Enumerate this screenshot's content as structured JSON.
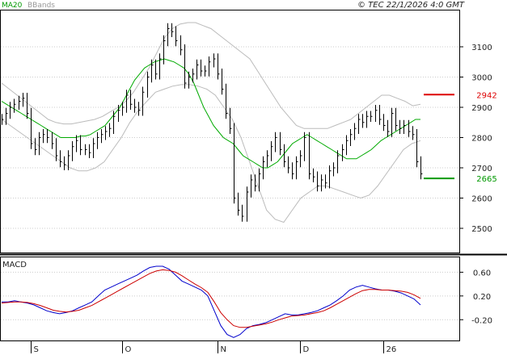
{
  "chart_data": [
    {
      "type": "line",
      "panel": "price",
      "header": {
        "legend_ma": "MA20",
        "legend_bb": "BBands",
        "copyright": "© TEC 22/1/2026 4:0 GMT"
      },
      "y_ticks": [
        2500,
        2600,
        2700,
        2800,
        2900,
        3000,
        3100
      ],
      "ylim": [
        2420,
        3220
      ],
      "x_labels": [
        {
          "label": "S",
          "index": 7
        },
        {
          "label": "O",
          "index": 29
        },
        {
          "label": "N",
          "index": 52
        },
        {
          "label": "D",
          "index": 72
        },
        {
          "label": "26",
          "index": 92
        }
      ],
      "levels": [
        {
          "label": "2942",
          "value": 2942,
          "color": "#dd0000"
        },
        {
          "label": "2665",
          "value": 2665,
          "color": "#009900"
        }
      ],
      "close": [
        2860,
        2880,
        2900,
        2910,
        2920,
        2930,
        2880,
        2780,
        2760,
        2800,
        2810,
        2800,
        2780,
        2740,
        2720,
        2710,
        2740,
        2770,
        2790,
        2760,
        2760,
        2750,
        2780,
        2800,
        2810,
        2820,
        2830,
        2870,
        2890,
        2900,
        2940,
        2910,
        2900,
        2890,
        2950,
        3000,
        3040,
        3010,
        3060,
        3120,
        3160,
        3150,
        3120,
        3090,
        2980,
        3000,
        3010,
        3040,
        3020,
        3020,
        3050,
        3060,
        3010,
        2960,
        2880,
        2830,
        2600,
        2560,
        2540,
        2620,
        2660,
        2640,
        2680,
        2720,
        2740,
        2770,
        2800,
        2760,
        2720,
        2700,
        2680,
        2720,
        2740,
        2800,
        2680,
        2670,
        2640,
        2660,
        2650,
        2690,
        2700,
        2740,
        2760,
        2790,
        2810,
        2830,
        2860,
        2850,
        2870,
        2870,
        2890,
        2860,
        2840,
        2820,
        2880,
        2840,
        2830,
        2840,
        2820,
        2810,
        2720,
        2680
      ],
      "ma20": [
        2920,
        2910,
        2900,
        2890,
        2880,
        2870,
        2860,
        2850,
        2840,
        2830,
        2820,
        2810,
        2800,
        2800,
        2800,
        2800,
        2805,
        2805,
        2810,
        2820,
        2830,
        2840,
        2860,
        2880,
        2900,
        2930,
        2960,
        2990,
        3010,
        3030,
        3040,
        3050,
        3055,
        3060,
        3055,
        3050,
        3040,
        3030,
        3010,
        2980,
        2940,
        2900,
        2870,
        2840,
        2820,
        2800,
        2790,
        2780,
        2760,
        2740,
        2730,
        2720,
        2710,
        2700,
        2700,
        2710,
        2720,
        2740,
        2760,
        2780,
        2790,
        2800,
        2810,
        2800,
        2790,
        2780,
        2770,
        2760,
        2750,
        2740,
        2730,
        2730,
        2730,
        2740,
        2750,
        2760,
        2775,
        2790,
        2800,
        2810,
        2820,
        2830,
        2840,
        2850,
        2860,
        2860
      ],
      "ma20_start_index": 0,
      "bb_upper": [
        2980,
        2960,
        2940,
        2920,
        2900,
        2880,
        2860,
        2850,
        2845,
        2845,
        2850,
        2855,
        2860,
        2870,
        2885,
        2900,
        2920,
        2950,
        2990,
        3030,
        3080,
        3130,
        3160,
        3175,
        3180,
        3180,
        3170,
        3160,
        3140,
        3120,
        3100,
        3080,
        3060,
        3020,
        2980,
        2940,
        2900,
        2870,
        2840,
        2830,
        2830,
        2830,
        2830,
        2840,
        2850,
        2860,
        2880,
        2900,
        2920,
        2940,
        2940,
        2930,
        2920,
        2905,
        2910
      ],
      "bb_upper_start_index": 0,
      "bb_lower": [
        2860,
        2840,
        2820,
        2800,
        2780,
        2760,
        2740,
        2720,
        2700,
        2690,
        2690,
        2700,
        2720,
        2760,
        2800,
        2850,
        2890,
        2920,
        2950,
        2960,
        2970,
        2975,
        2975,
        2970,
        2960,
        2940,
        2900,
        2860,
        2800,
        2720,
        2640,
        2560,
        2530,
        2520,
        2560,
        2600,
        2620,
        2640,
        2640,
        2630,
        2620,
        2610,
        2600,
        2610,
        2640,
        2680,
        2720,
        2760,
        2780,
        2790
      ],
      "bb_lower_start_index": 0
    },
    {
      "type": "line",
      "panel": "macd",
      "title": "MACD",
      "y_ticks": [
        {
          "label": "-0.20",
          "value": -0.2
        },
        {
          "label": "0.20",
          "value": 0.2
        },
        {
          "label": "0.60",
          "value": 0.6
        }
      ],
      "ylim": [
        -0.55,
        0.85
      ],
      "series": [
        {
          "color": "#0000cc",
          "values": [
            0.1,
            0.1,
            0.12,
            0.1,
            0.08,
            0.05,
            0.0,
            -0.05,
            -0.08,
            -0.1,
            -0.08,
            -0.05,
            0.0,
            0.05,
            0.1,
            0.2,
            0.3,
            0.35,
            0.4,
            0.45,
            0.5,
            0.55,
            0.62,
            0.68,
            0.7,
            0.7,
            0.65,
            0.55,
            0.45,
            0.4,
            0.35,
            0.3,
            0.2,
            -0.05,
            -0.3,
            -0.45,
            -0.5,
            -0.45,
            -0.35,
            -0.3,
            -0.28,
            -0.25,
            -0.2,
            -0.15,
            -0.1,
            -0.12,
            -0.12,
            -0.1,
            -0.08,
            -0.05,
            0.0,
            0.05,
            0.12,
            0.2,
            0.3,
            0.35,
            0.38,
            0.35,
            0.32,
            0.3,
            0.3,
            0.28,
            0.25,
            0.2,
            0.15,
            0.05
          ]
        },
        {
          "color": "#cc0000",
          "values": [
            0.08,
            0.09,
            0.1,
            0.1,
            0.09,
            0.07,
            0.04,
            0.0,
            -0.04,
            -0.06,
            -0.07,
            -0.06,
            -0.04,
            0.0,
            0.04,
            0.1,
            0.16,
            0.22,
            0.28,
            0.34,
            0.4,
            0.46,
            0.52,
            0.58,
            0.62,
            0.64,
            0.63,
            0.6,
            0.54,
            0.47,
            0.4,
            0.34,
            0.26,
            0.1,
            -0.08,
            -0.2,
            -0.3,
            -0.33,
            -0.33,
            -0.31,
            -0.29,
            -0.27,
            -0.24,
            -0.2,
            -0.17,
            -0.14,
            -0.13,
            -0.12,
            -0.1,
            -0.08,
            -0.05,
            0.0,
            0.06,
            0.12,
            0.18,
            0.24,
            0.29,
            0.31,
            0.31,
            0.3,
            0.3,
            0.29,
            0.28,
            0.26,
            0.22,
            0.16
          ]
        }
      ]
    }
  ]
}
